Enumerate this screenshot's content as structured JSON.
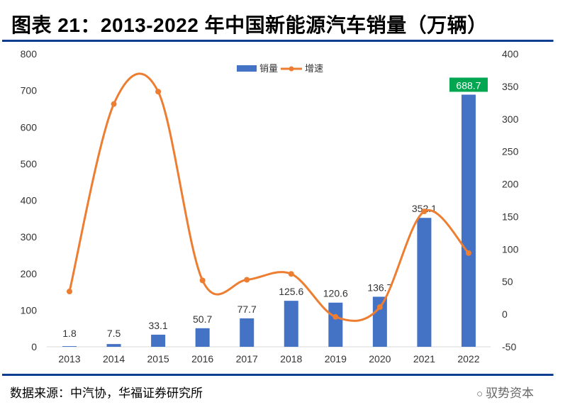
{
  "title": "图表 21：2013-2022 年中国新能源汽车销量（万辆）",
  "source": "数据来源：中汽协，华福证券研究所",
  "watermark": "驭势资本",
  "colors": {
    "bar": "#4472c4",
    "line": "#ed7d31",
    "highlight": "#00a650",
    "rule": "#0b3d91"
  },
  "chart_data": {
    "type": "bar+line",
    "categories": [
      "2013",
      "2014",
      "2015",
      "2016",
      "2017",
      "2018",
      "2019",
      "2020",
      "2021",
      "2022"
    ],
    "series": [
      {
        "name": "销量",
        "type": "bar",
        "axis": "left",
        "values": [
          1.8,
          7.5,
          33.1,
          50.7,
          77.7,
          125.6,
          120.6,
          136.7,
          352.1,
          688.7
        ],
        "labels": [
          "1.8",
          "7.5",
          "33.1",
          "50.7",
          "77.7",
          "125.6",
          "120.6",
          "136.7",
          "352.1",
          "688.7"
        ]
      },
      {
        "name": "增速",
        "type": "line",
        "axis": "right",
        "values": [
          35,
          323,
          342,
          52,
          53,
          62,
          -4,
          11,
          158,
          94
        ]
      }
    ],
    "left_axis": {
      "ylim": [
        0,
        800
      ],
      "ticks": [
        "0",
        "100",
        "200",
        "300",
        "400",
        "500",
        "600",
        "700",
        "800"
      ]
    },
    "right_axis": {
      "ylim": [
        -50,
        400
      ],
      "ticks": [
        "-50",
        "0",
        "50",
        "100",
        "150",
        "200",
        "250",
        "300",
        "350",
        "400"
      ]
    },
    "legend_position": "top-center",
    "grid": false
  }
}
